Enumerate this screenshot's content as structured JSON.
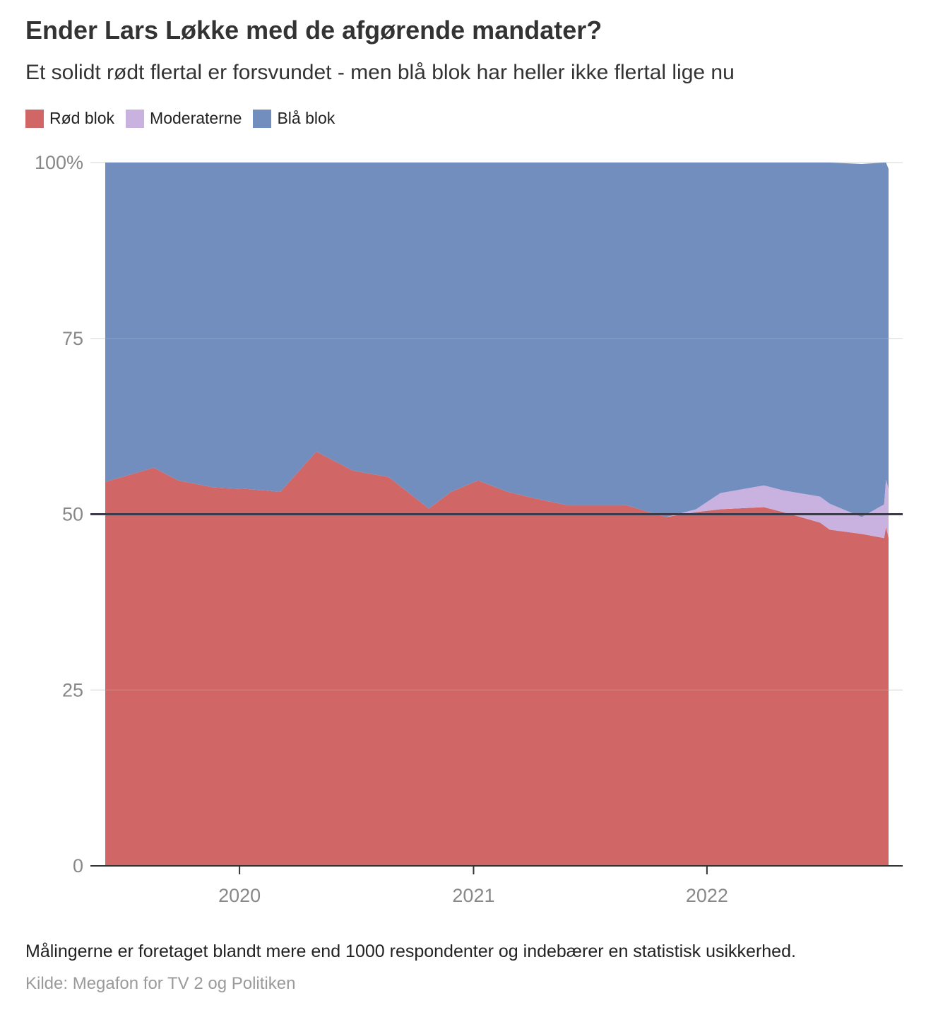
{
  "title": "Ender Lars Løkke med de afgørende mandater?",
  "subtitle": "Et solidt rødt flertal er forsvundet -  men blå blok har heller ikke flertal lige nu",
  "legend": [
    {
      "label": "Rød blok",
      "color": "#d06666"
    },
    {
      "label": "Moderaterne",
      "color": "#c9b2df"
    },
    {
      "label": "Blå blok",
      "color": "#718ebf"
    }
  ],
  "note": "Målingerne er foretaget blandt mere end 1000 respondenter og indebærer en statistisk usikkerhed.",
  "source": "Kilde: Megafon for TV 2 og Politiken",
  "chart_data": {
    "type": "area",
    "stacked": true,
    "x": [
      "2019-06-05",
      "2019-08-20",
      "2019-09-27",
      "2019-11-22",
      "2020-01-10",
      "2020-03-05",
      "2020-04-30",
      "2020-06-26",
      "2020-08-21",
      "2020-10-23",
      "2020-11-27",
      "2021-01-08",
      "2021-02-23",
      "2021-04-09",
      "2021-05-27",
      "2021-06-30",
      "2021-08-27",
      "2021-10-29",
      "2021-12-15",
      "2022-01-22",
      "2022-03-31",
      "2022-04-30",
      "2022-06-27",
      "2022-07-12",
      "2022-08-31",
      "2022-10-05",
      "2022-10-08",
      "2022-10-12"
    ],
    "series": [
      {
        "name": "Rød blok",
        "color": "#d06666",
        "values": [
          54.6,
          56.6,
          54.8,
          53.8,
          53.6,
          53.2,
          58.9,
          56.2,
          55.3,
          50.8,
          53.2,
          54.8,
          53.2,
          52.2,
          51.3,
          51.3,
          51.3,
          49.6,
          50.3,
          50.7,
          51.0,
          50.3,
          48.8,
          47.8,
          47.2,
          46.6,
          48.2,
          46.6
        ]
      },
      {
        "name": "Moderaterne",
        "color": "#c9b2df",
        "values": [
          0,
          0,
          0,
          0,
          0,
          0,
          0,
          0,
          0,
          0,
          0,
          0,
          0,
          0,
          0,
          0,
          0,
          0,
          0.4,
          2.3,
          3.1,
          3.1,
          3.7,
          3.7,
          2.4,
          4.8,
          6.7,
          7.0
        ]
      },
      {
        "name": "Blå blok",
        "color": "#718ebf",
        "values": [
          45.4,
          43.4,
          45.2,
          46.2,
          46.4,
          46.8,
          41.1,
          43.8,
          44.7,
          49.2,
          46.8,
          45.2,
          46.8,
          47.8,
          48.7,
          48.7,
          48.7,
          50.4,
          49.3,
          47.0,
          45.9,
          46.6,
          47.5,
          48.5,
          50.2,
          48.6,
          45.1,
          45.5
        ]
      }
    ],
    "xticks": [
      {
        "date": "2020-01-01",
        "label": "2020"
      },
      {
        "date": "2021-01-01",
        "label": "2021"
      },
      {
        "date": "2022-01-01",
        "label": "2022"
      }
    ],
    "yticks": [
      {
        "value": 0,
        "label": "0"
      },
      {
        "value": 25,
        "label": "25"
      },
      {
        "value": 50,
        "label": "50"
      },
      {
        "value": 75,
        "label": "75"
      },
      {
        "value": 100,
        "label": "100%"
      }
    ],
    "ylim": [
      0,
      100
    ],
    "xlim": [
      "2019-06-05",
      "2022-10-12"
    ],
    "reference_line": {
      "value": 50,
      "color": "#3a3a4a"
    },
    "grid": true,
    "legend_position": "top-left"
  }
}
